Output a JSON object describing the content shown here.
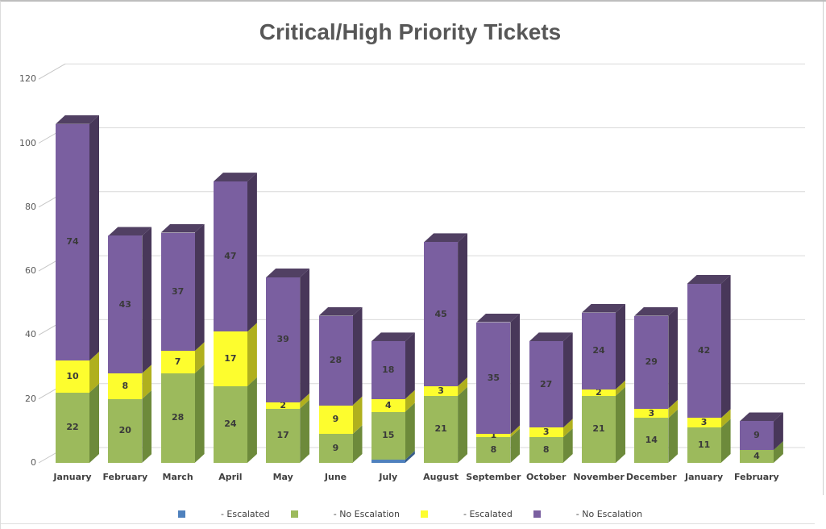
{
  "title": "Critical/High Priority Tickets",
  "chart_data": {
    "type": "bar",
    "stacked": true,
    "style": "3d-column",
    "title": "Critical/High Priority Tickets",
    "categories": [
      "January",
      "February",
      "March",
      "April",
      "May",
      "June",
      "July",
      "August",
      "September",
      "October",
      "November",
      "December",
      "January",
      "February"
    ],
    "series": [
      {
        "name": "- Escalated",
        "color": "#4f81bd",
        "side_color": "#385d89",
        "show_labels": false,
        "values": [
          0,
          0,
          0,
          0,
          0,
          0,
          1,
          0,
          0,
          0,
          0,
          0,
          0,
          0
        ]
      },
      {
        "name": "- No Escalation",
        "color": "#9cba5c",
        "side_color": "#6d8a3b",
        "show_labels": true,
        "values": [
          22,
          20,
          28,
          24,
          17,
          9,
          15,
          21,
          8,
          8,
          21,
          14,
          11,
          4
        ]
      },
      {
        "name": "- Escalated",
        "color": "#fdfd2e",
        "side_color": "#b0b01e",
        "show_labels": true,
        "values": [
          10,
          8,
          7,
          17,
          2,
          9,
          4,
          3,
          1,
          3,
          2,
          3,
          3,
          0
        ]
      },
      {
        "name": "- No Escalation",
        "color": "#7a5fa0",
        "side_color": "#483759",
        "top_color": "#514063",
        "show_labels": true,
        "values": [
          74,
          43,
          37,
          47,
          39,
          28,
          18,
          45,
          35,
          27,
          24,
          29,
          42,
          9
        ]
      }
    ],
    "ylim": [
      0,
      120
    ],
    "yticks": [
      0,
      20,
      40,
      60,
      80,
      100,
      120
    ],
    "grid": true,
    "gridline_color": "#d9d9d9",
    "legend_position": "bottom"
  }
}
